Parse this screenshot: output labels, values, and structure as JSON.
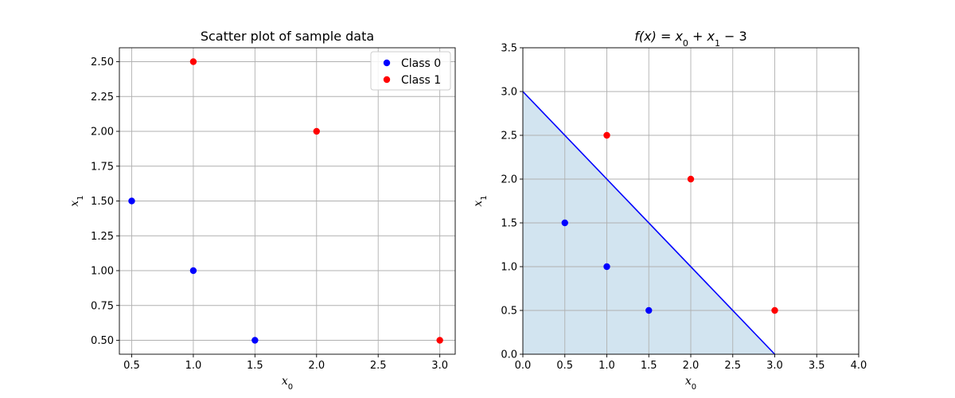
{
  "chart_data": [
    {
      "type": "scatter",
      "title": "Scatter plot of sample data",
      "xlabel": "x0",
      "ylabel": "x1",
      "xlim": [
        0.4,
        3.125
      ],
      "ylim": [
        0.4,
        2.6
      ],
      "xticks": [
        "0.5",
        "1.0",
        "1.5",
        "2.0",
        "2.5",
        "3.0"
      ],
      "yticks": [
        "0.50",
        "0.75",
        "1.00",
        "1.25",
        "1.50",
        "1.75",
        "2.00",
        "2.25",
        "2.50"
      ],
      "grid": true,
      "legend": {
        "position": "top-right",
        "entries": [
          "Class 0",
          "Class 1"
        ]
      },
      "series": [
        {
          "name": "Class 0",
          "color": "#0000ff",
          "points": [
            [
              0.5,
              1.5
            ],
            [
              1.0,
              1.0
            ],
            [
              1.5,
              0.5
            ]
          ]
        },
        {
          "name": "Class 1",
          "color": "#ff0000",
          "points": [
            [
              1.0,
              2.5
            ],
            [
              2.0,
              2.0
            ],
            [
              3.0,
              0.5
            ]
          ]
        }
      ]
    },
    {
      "type": "scatter",
      "title": "f(x) = x0 + x1 − 3",
      "xlabel": "x0",
      "ylabel": "x1",
      "xlim": [
        0,
        4
      ],
      "ylim": [
        0,
        3.5
      ],
      "xticks": [
        "0.0",
        "0.5",
        "1.0",
        "1.5",
        "2.0",
        "2.5",
        "3.0",
        "3.5",
        "4.0"
      ],
      "yticks": [
        "0.0",
        "0.5",
        "1.0",
        "1.5",
        "2.0",
        "2.5",
        "3.0",
        "3.5"
      ],
      "grid": true,
      "decision_boundary": {
        "line": [
          [
            0,
            3
          ],
          [
            3,
            0
          ]
        ],
        "color": "#0000ff",
        "fill_below": true,
        "fill_color": "#1f77b4",
        "fill_opacity": 0.2
      },
      "series": [
        {
          "name": "Class 0",
          "color": "#0000ff",
          "points": [
            [
              0.5,
              1.5
            ],
            [
              1.0,
              1.0
            ],
            [
              1.5,
              0.5
            ]
          ]
        },
        {
          "name": "Class 1",
          "color": "#ff0000",
          "points": [
            [
              1.0,
              2.5
            ],
            [
              2.0,
              2.0
            ],
            [
              3.0,
              0.5
            ]
          ]
        }
      ]
    }
  ]
}
